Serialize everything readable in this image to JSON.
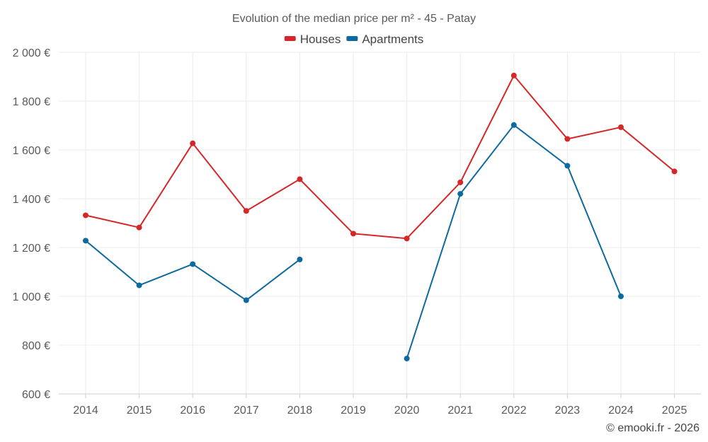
{
  "chart_data": {
    "type": "line",
    "title": "Evolution of the median price per m² - 45 - Patay",
    "x": [
      "2014",
      "2015",
      "2016",
      "2017",
      "2018",
      "2019",
      "2020",
      "2021",
      "2022",
      "2023",
      "2024",
      "2025"
    ],
    "y_ticks": [
      "600 €",
      "800 €",
      "1 000 €",
      "1 200 €",
      "1 400 €",
      "1 600 €",
      "1 800 €",
      "2 000 €"
    ],
    "y_tick_values": [
      600,
      800,
      1000,
      1200,
      1400,
      1600,
      1800,
      2000
    ],
    "ylim": [
      600,
      2000
    ],
    "grid": true,
    "legend_position": "top-center",
    "series": [
      {
        "name": "Houses",
        "color": "#d62728",
        "values": [
          1332,
          1282,
          1627,
          1350,
          1480,
          1257,
          1237,
          1467,
          1905,
          1645,
          1693,
          1512
        ]
      },
      {
        "name": "Apartments",
        "color": "#0d6a9e",
        "values": [
          1228,
          1045,
          1132,
          984,
          1151,
          null,
          745,
          1420,
          1702,
          1535,
          1000,
          null
        ]
      }
    ],
    "credit": "© emooki.fr - 2026"
  }
}
